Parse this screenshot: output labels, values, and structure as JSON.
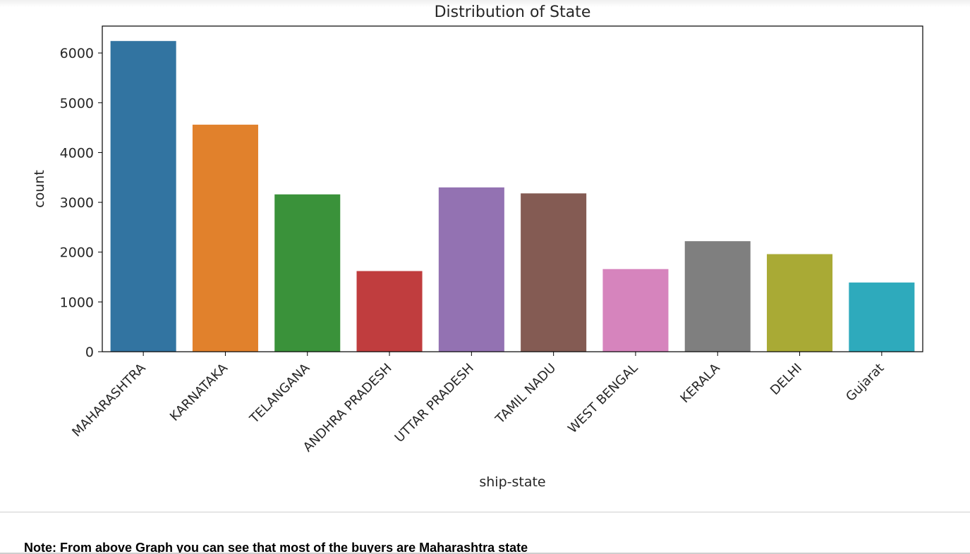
{
  "chart_data": {
    "type": "bar",
    "title": "Distribution of  State",
    "xlabel": "ship-state",
    "ylabel": "count",
    "categories": [
      "MAHARASHTRA",
      "KARNATAKA",
      "TELANGANA",
      "ANDHRA PRADESH",
      "UTTAR PRADESH",
      "TAMIL NADU",
      "WEST BENGAL",
      "KERALA",
      "DELHI",
      "Gujarat"
    ],
    "values": [
      6240,
      4560,
      3160,
      1620,
      3300,
      3180,
      1660,
      2220,
      1960,
      1390
    ],
    "colors": [
      "#3274a1",
      "#e1812c",
      "#3a923a",
      "#c03d3e",
      "#9372b2",
      "#845b53",
      "#d684bd",
      "#7f7f7f",
      "#a9aa35",
      "#2eaabc"
    ],
    "yticks": [
      0,
      1000,
      2000,
      3000,
      4000,
      5000,
      6000
    ],
    "ylim": [
      0,
      6540
    ],
    "grid": false
  },
  "note": "Note: From above Graph you can see that most of the buyers are Maharashtra state"
}
